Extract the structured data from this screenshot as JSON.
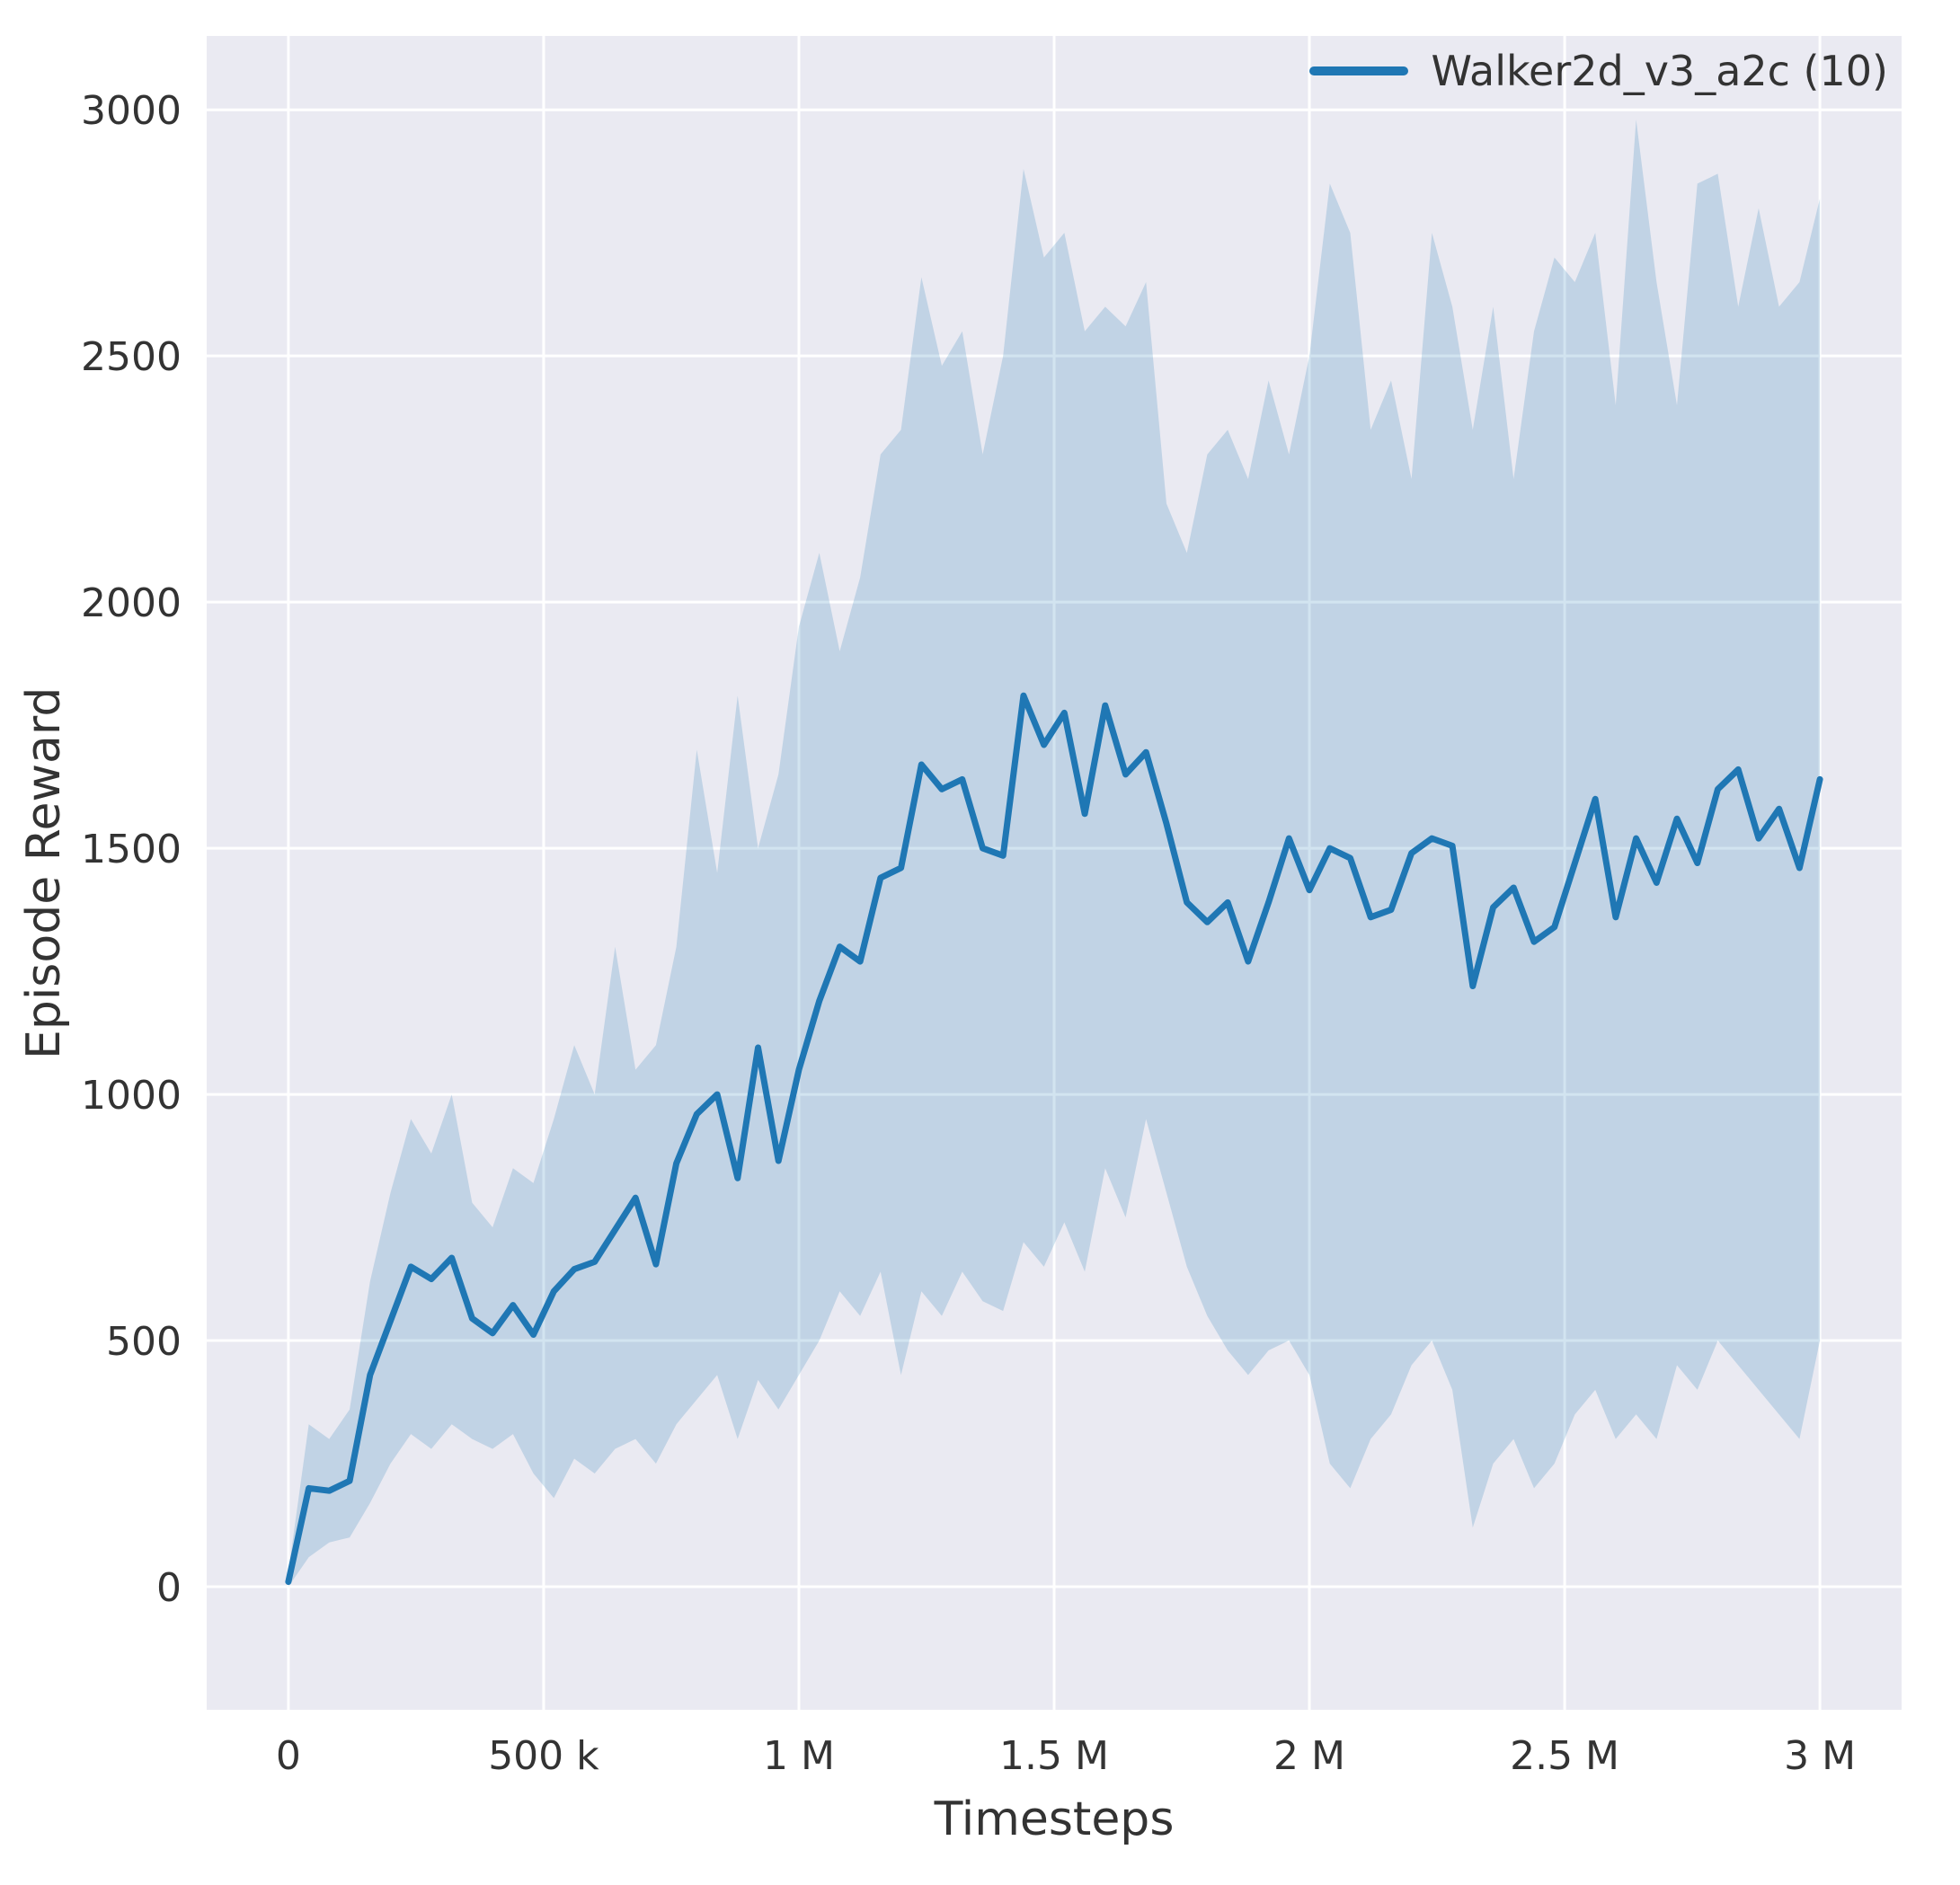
{
  "figure": {
    "legend": {
      "label": "Walker2d_v3_a2c (10)",
      "position": "upper right"
    },
    "colors": {
      "line": "#1f77b4",
      "band": "rgba(31,119,180,0.2)",
      "plot_bg": "#eaeaf2",
      "grid": "#ffffff",
      "text": "#333333"
    }
  },
  "chart_data": {
    "type": "line",
    "title": "",
    "xlabel": "Timesteps",
    "ylabel": "Episode Reward",
    "xlim": [
      -160000,
      3160000
    ],
    "ylim": [
      -250,
      3150
    ],
    "grid": true,
    "legend_position": "upper right",
    "x_step": 40000,
    "x_tick_values": [
      0,
      500000,
      1000000,
      1500000,
      2000000,
      2500000,
      3000000
    ],
    "x_tick_labels": [
      "0",
      "500 k",
      "1 M",
      "1.5 M",
      "2 M",
      "2.5 M",
      "3 M"
    ],
    "y_tick_values": [
      0,
      500,
      1000,
      1500,
      2000,
      2500,
      3000
    ],
    "y_tick_labels": [
      "0",
      "500",
      "1000",
      "1500",
      "2000",
      "2500",
      "3000"
    ],
    "series": [
      {
        "name": "Walker2d_v3_a2c (10)",
        "color": "#1f77b4",
        "mean": [
          10,
          200,
          195,
          215,
          430,
          540,
          650,
          625,
          668,
          545,
          515,
          572,
          512,
          600,
          645,
          660,
          725,
          790,
          655,
          860,
          960,
          1000,
          830,
          1095,
          865,
          1050,
          1190,
          1300,
          1270,
          1440,
          1460,
          1670,
          1620,
          1640,
          1500,
          1485,
          1810,
          1710,
          1775,
          1570,
          1790,
          1650,
          1695,
          1550,
          1390,
          1350,
          1390,
          1270,
          1390,
          1520,
          1415,
          1500,
          1480,
          1360,
          1375,
          1490,
          1520,
          1505,
          1220,
          1380,
          1420,
          1310,
          1340,
          1470,
          1600,
          1360,
          1520,
          1430,
          1560,
          1470,
          1620,
          1660,
          1520,
          1580,
          1460,
          1640
        ],
        "band_lower": [
          0,
          60,
          90,
          100,
          170,
          250,
          310,
          280,
          330,
          300,
          280,
          310,
          230,
          180,
          260,
          230,
          280,
          300,
          250,
          330,
          380,
          430,
          300,
          420,
          360,
          430,
          500,
          600,
          550,
          640,
          430,
          600,
          550,
          640,
          580,
          560,
          700,
          650,
          740,
          640,
          850,
          750,
          950,
          800,
          650,
          550,
          480,
          430,
          480,
          500,
          430,
          250,
          200,
          300,
          350,
          450,
          500,
          400,
          120,
          250,
          300,
          200,
          250,
          350,
          400,
          300,
          350,
          300,
          450,
          400,
          500,
          450,
          400,
          350,
          300,
          500
        ],
        "band_upper": [
          30,
          330,
          300,
          360,
          620,
          800,
          950,
          880,
          1000,
          780,
          730,
          850,
          820,
          950,
          1100,
          1000,
          1300,
          1050,
          1100,
          1300,
          1700,
          1450,
          1810,
          1500,
          1650,
          1950,
          2100,
          1900,
          2050,
          2300,
          2350,
          2660,
          2480,
          2550,
          2300,
          2500,
          2880,
          2700,
          2750,
          2550,
          2600,
          2560,
          2650,
          2200,
          2100,
          2300,
          2350,
          2250,
          2450,
          2300,
          2500,
          2850,
          2750,
          2350,
          2450,
          2250,
          2750,
          2600,
          2350,
          2600,
          2250,
          2550,
          2700,
          2650,
          2750,
          2400,
          2980,
          2650,
          2400,
          2850,
          2870,
          2600,
          2800,
          2600,
          2650,
          2820
        ]
      }
    ]
  }
}
